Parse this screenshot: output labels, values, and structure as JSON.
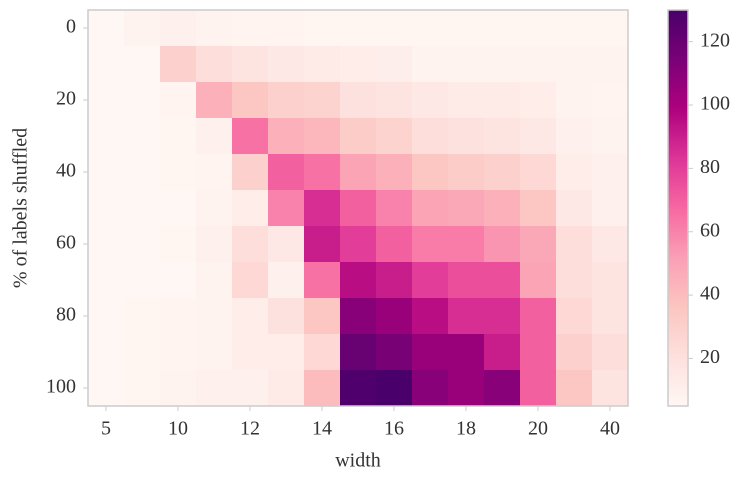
{
  "chart_data": {
    "type": "heatmap",
    "x_label": "width",
    "y_label": "% of labels shuffled",
    "categories": [
      "5",
      null,
      "10",
      null,
      "12",
      null,
      "14",
      null,
      "16",
      null,
      "18",
      null,
      "20",
      null,
      "40"
    ],
    "y_categories": [
      "0",
      null,
      "20",
      null,
      "40",
      null,
      "60",
      null,
      "80",
      null,
      "100"
    ],
    "values": [
      [
        5,
        8,
        10,
        8,
        7,
        7,
        6,
        6,
        6,
        6,
        6,
        6,
        6,
        6,
        6
      ],
      [
        5,
        5,
        30,
        22,
        18,
        15,
        13,
        12,
        11,
        8,
        8,
        8,
        8,
        8,
        8
      ],
      [
        5,
        5,
        7,
        45,
        35,
        30,
        28,
        20,
        18,
        15,
        14,
        13,
        12,
        8,
        7
      ],
      [
        5,
        5,
        6,
        10,
        65,
        45,
        42,
        32,
        28,
        22,
        20,
        18,
        15,
        10,
        8
      ],
      [
        5,
        5,
        6,
        7,
        30,
        70,
        65,
        50,
        45,
        35,
        32,
        30,
        25,
        12,
        9
      ],
      [
        5,
        5,
        5,
        8,
        12,
        60,
        85,
        70,
        60,
        50,
        48,
        45,
        35,
        15,
        10
      ],
      [
        5,
        5,
        6,
        9,
        22,
        15,
        90,
        80,
        70,
        62,
        62,
        55,
        48,
        22,
        15
      ],
      [
        5,
        5,
        5,
        8,
        25,
        10,
        65,
        95,
        90,
        80,
        75,
        75,
        50,
        22,
        18
      ],
      [
        5,
        6,
        7,
        8,
        12,
        20,
        35,
        110,
        105,
        95,
        85,
        85,
        70,
        25,
        18
      ],
      [
        5,
        6,
        7,
        8,
        12,
        12,
        25,
        120,
        115,
        105,
        105,
        90,
        70,
        30,
        22
      ],
      [
        5,
        6,
        8,
        10,
        10,
        14,
        40,
        128,
        130,
        110,
        105,
        110,
        70,
        35,
        18
      ]
    ],
    "colormap": "RdPu",
    "clim": [
      5,
      130
    ],
    "cticks": [
      20,
      40,
      60,
      80,
      100,
      120
    ]
  }
}
